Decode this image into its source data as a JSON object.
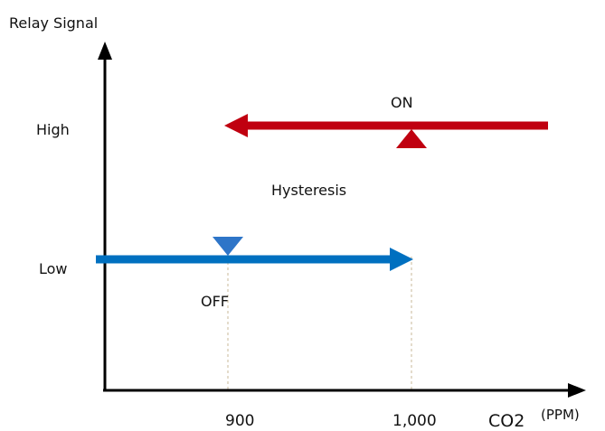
{
  "y_axis_title": "Relay Signal",
  "x_axis_title": "CO2",
  "x_axis_unit": "(PPM)",
  "levels": {
    "high": "High",
    "low": "Low"
  },
  "thresholds": {
    "off": "900",
    "on": "1,000"
  },
  "state_labels": {
    "on": "ON",
    "off": "OFF",
    "band": "Hysteresis"
  },
  "colors": {
    "on_arrow": "#c00010",
    "off_arrow": "#0070c0",
    "transition_top": "#e8203a",
    "transition_bottom": "#4472c4",
    "axis": "#000000",
    "guide": "#c8b89a"
  }
}
